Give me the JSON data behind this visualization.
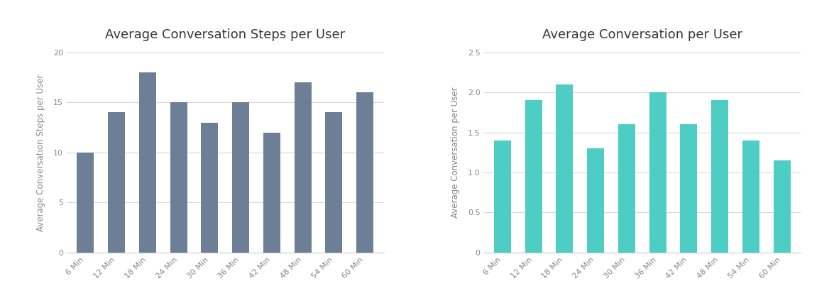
{
  "categories": [
    "6 Min",
    "12 Min",
    "18 Min",
    "24 Min",
    "30 Min",
    "36 Min",
    "42 Min",
    "48 Min",
    "54 Min",
    "60 Min"
  ],
  "chart1": {
    "title": "Average Conversation Steps per User",
    "ylabel": "Average Conversation Steps per User",
    "values": [
      10,
      14,
      18,
      15,
      13,
      15,
      12,
      17,
      14,
      16
    ],
    "bar_color": "#6d7f96",
    "ylim": [
      0,
      20
    ],
    "yticks": [
      0,
      5,
      10,
      15,
      20
    ],
    "legend_label": "Average Conversation Steps per User"
  },
  "chart2": {
    "title": "Average Conversation per User",
    "ylabel": "Average Conversation per User",
    "values": [
      1.4,
      1.9,
      2.1,
      1.3,
      1.6,
      2.0,
      1.6,
      1.9,
      1.4,
      1.15
    ],
    "bar_color": "#4ecdc4",
    "ylim": [
      0,
      2.5
    ],
    "yticks": [
      0,
      0.5,
      1.0,
      1.5,
      2.0,
      2.5
    ],
    "legend_label": "Average Conversation per User"
  },
  "background_color": "#ffffff",
  "title_fontsize": 13,
  "label_fontsize": 8.5,
  "tick_fontsize": 8,
  "legend_fontsize": 9,
  "grid_color": "#d8d8d8",
  "title_color": "#3d3530",
  "axis_color": "#cccccc",
  "tick_color": "#888888"
}
